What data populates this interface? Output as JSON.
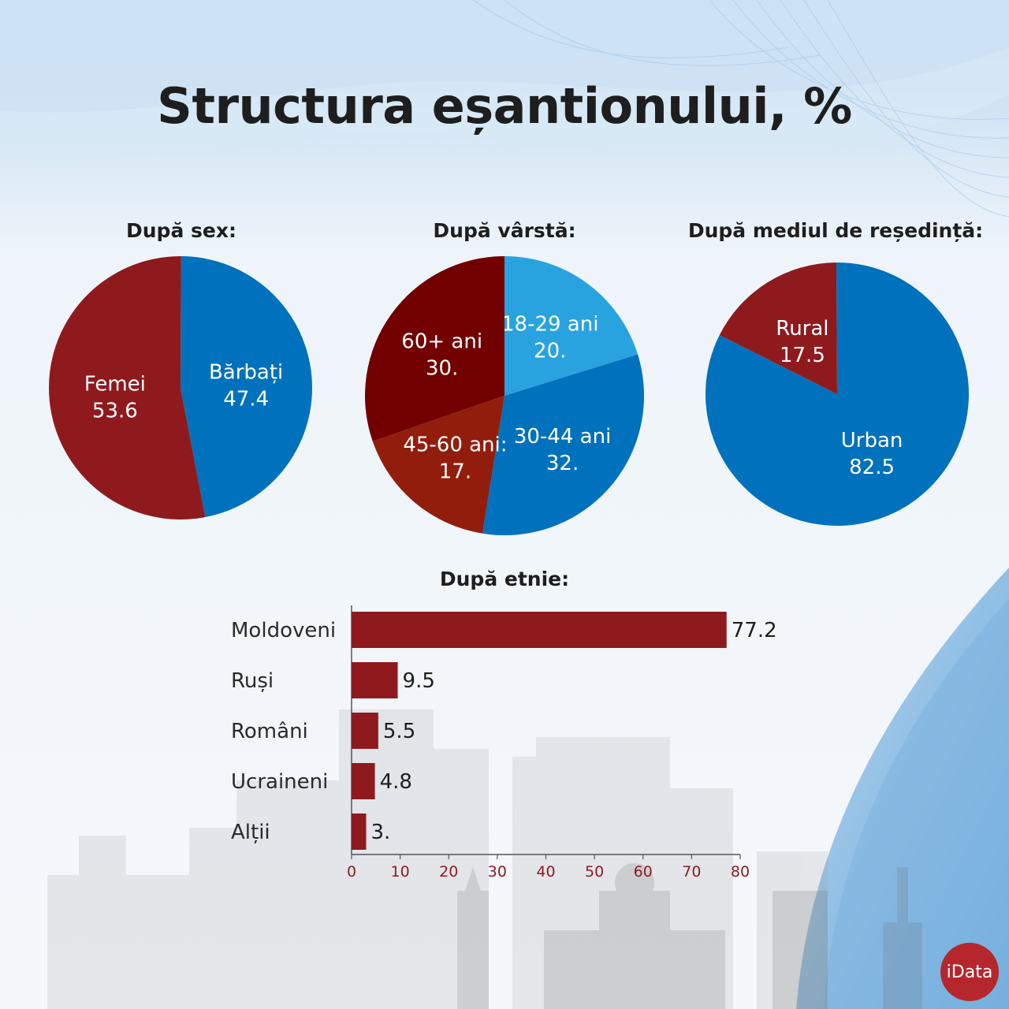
{
  "title": "Structura eșantionului, %",
  "brand": "iData",
  "colors": {
    "red": "#8f1a1e",
    "dark_red": "#730000",
    "mid_red": "#931d0c",
    "blue": "#0071bc",
    "light_blue": "#29a3df"
  },
  "chart_data": [
    {
      "type": "pie",
      "title": "După sex:",
      "slices": [
        {
          "label": "Bărbați",
          "value": 47.4,
          "color": "#0071bc"
        },
        {
          "label": "Femei",
          "value": 53.6,
          "color": "#8f1a1e"
        }
      ]
    },
    {
      "type": "pie",
      "title": "După vârstă:",
      "slices": [
        {
          "label": "18-29 ani",
          "value": 20,
          "value_label": "20.",
          "color": "#29a3df"
        },
        {
          "label": "30-44 ani",
          "value": 32,
          "value_label": "32.",
          "color": "#0071bc"
        },
        {
          "label": "45-60 ani:",
          "value": 17,
          "value_label": "17.",
          "color": "#931d0c"
        },
        {
          "label": "60+ ani",
          "value": 30,
          "value_label": "30.",
          "color": "#730000"
        }
      ]
    },
    {
      "type": "pie",
      "title": "După mediul de reședință:",
      "slices": [
        {
          "label": "Urban",
          "value": 82.5,
          "color": "#0071bc"
        },
        {
          "label": "Rural",
          "value": 17.5,
          "color": "#8f1a1e"
        }
      ]
    },
    {
      "type": "bar",
      "orientation": "horizontal",
      "title": "După etnie:",
      "categories": [
        "Moldoveni",
        "Ruși",
        "Români",
        "Ucraineni",
        "Alții"
      ],
      "values": [
        77.2,
        9.5,
        5.5,
        4.8,
        3
      ],
      "value_labels": [
        "77.2",
        "9.5",
        "5.5",
        "4.8",
        "3."
      ],
      "xlim": [
        0,
        80
      ],
      "xticks": [
        0,
        10,
        20,
        30,
        40,
        50,
        60,
        70,
        80
      ],
      "color": "#8f1a1e"
    }
  ]
}
